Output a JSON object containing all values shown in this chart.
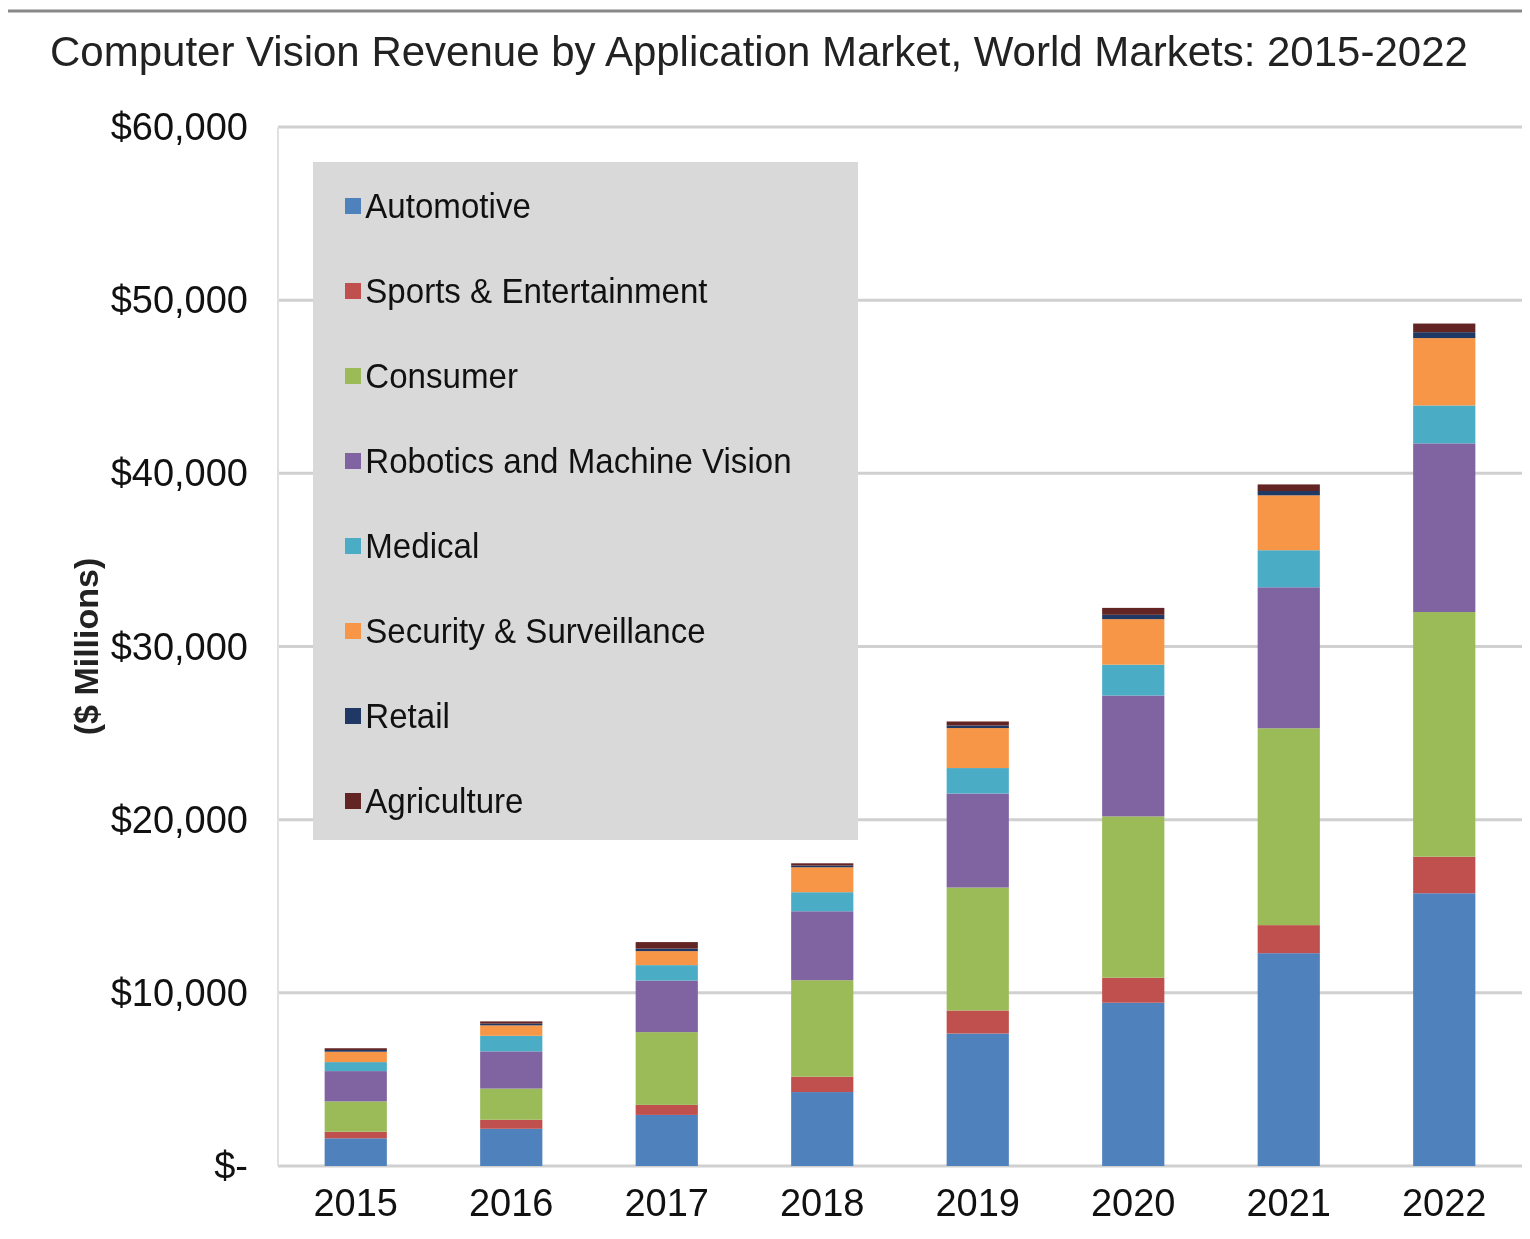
{
  "chart_data": {
    "type": "bar",
    "title": "Computer Vision Revenue by Application Market, World Markets: 2015-2022",
    "ylabel": "($ Millions)",
    "categories": [
      "2015",
      "2016",
      "2017",
      "2018",
      "2019",
      "2020",
      "2021",
      "2022"
    ],
    "stacked": true,
    "series": [
      {
        "name": "Automotive",
        "color": "#4f81bd",
        "values": [
          1600,
          2150,
          2950,
          4270,
          7650,
          9430,
          12290,
          15750
        ]
      },
      {
        "name": "Sports & Entertainment",
        "color": "#c0504d",
        "values": [
          380,
          520,
          580,
          890,
          1330,
          1440,
          1620,
          2110
        ]
      },
      {
        "name": "Consumer",
        "color": "#9bbb59",
        "values": [
          1750,
          1800,
          4200,
          5570,
          7100,
          9320,
          11370,
          14130
        ]
      },
      {
        "name": "Robotics and Machine Vision",
        "color": "#8064a2",
        "values": [
          1750,
          2150,
          2980,
          3980,
          5430,
          6980,
          8140,
          9740
        ]
      },
      {
        "name": "Medical",
        "color": "#4bacc6",
        "values": [
          520,
          900,
          890,
          1100,
          1470,
          1780,
          2140,
          2190
        ]
      },
      {
        "name": "Security & Surveillance",
        "color": "#f79646",
        "values": [
          600,
          600,
          810,
          1440,
          2310,
          2630,
          3170,
          3890
        ]
      },
      {
        "name": "Retail",
        "color": "#1f3864",
        "values": [
          100,
          100,
          150,
          100,
          150,
          250,
          250,
          340
        ]
      },
      {
        "name": "Agriculture",
        "color": "#632523",
        "values": [
          100,
          130,
          370,
          130,
          230,
          400,
          380,
          500
        ]
      }
    ],
    "ylim": [
      0,
      60000
    ],
    "yticks": [
      {
        "value": 0,
        "label": "$-"
      },
      {
        "value": 10000,
        "label": "$10,000"
      },
      {
        "value": 20000,
        "label": "$20,000"
      },
      {
        "value": 30000,
        "label": "$30,000"
      },
      {
        "value": 40000,
        "label": "$40,000"
      },
      {
        "value": 50000,
        "label": "$50,000"
      },
      {
        "value": 60000,
        "label": "$60,000"
      }
    ],
    "grid": "y",
    "legend": "top left"
  }
}
